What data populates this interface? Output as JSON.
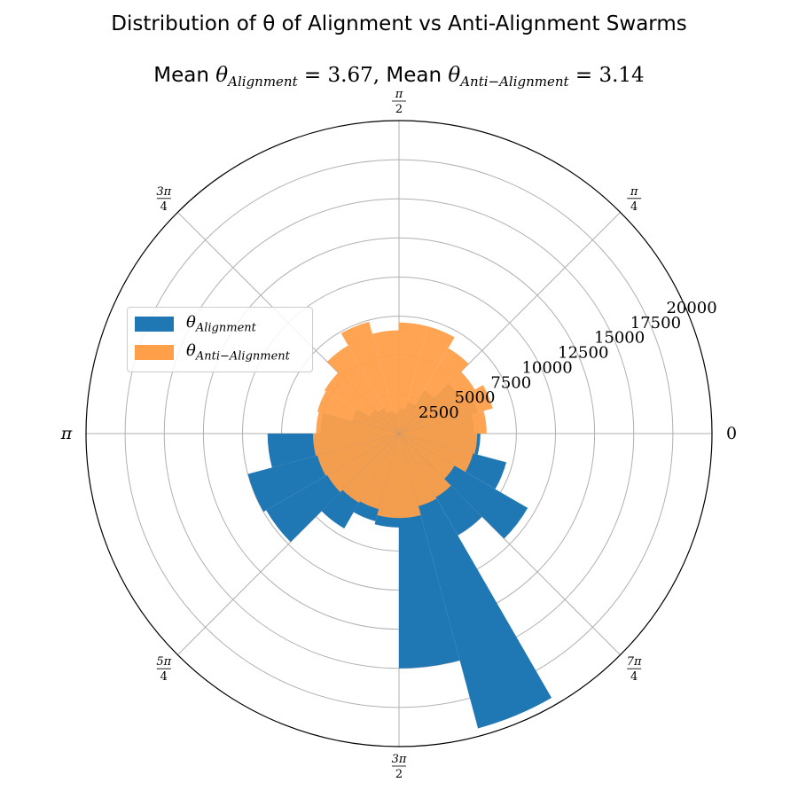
{
  "chart_data": {
    "type": "bar",
    "projection": "polar",
    "title": "Distribution of θ of Alignment vs Anti-Alignment Swarms",
    "subtitle": {
      "prefix_1": "Mean ",
      "symbol_1": "θ",
      "sub_1": "Alignment",
      "value_1": " = 3.67, ",
      "prefix_2": "Mean ",
      "symbol_2": "θ",
      "sub_2": "Anti−Alignment",
      "value_2": " = 3.14"
    },
    "angle_tick_labels": [
      "0",
      "π/4",
      "π/2",
      "3π/4",
      "π",
      "5π/4",
      "3π/2",
      "7π/4"
    ],
    "radial_ticks": [
      2500,
      5000,
      7500,
      10000,
      12500,
      15000,
      17500,
      20000
    ],
    "rlim": [
      0,
      20000
    ],
    "grid": true,
    "legend_position": "left",
    "bin_count": 24,
    "bin_width_deg": 15,
    "series": [
      {
        "name": "θ_Alignment",
        "color": "#1f77b4",
        "values": [
          4800,
          5200,
          4500,
          3200,
          2100,
          1600,
          1300,
          1500,
          1900,
          2200,
          3100,
          5000,
          8400,
          10000,
          9800,
          7000,
          5800,
          6000,
          15000,
          19500,
          7500,
          9500,
          7100,
          5200
        ]
      },
      {
        "name": "θ_Anti−Alignment",
        "color": "#ff9f4a",
        "opacity": 0.95,
        "values": [
          5600,
          6200,
          5600,
          6300,
          7100,
          7100,
          6600,
          7400,
          6500,
          5500,
          5400,
          5300,
          5500,
          5400,
          5300,
          5100,
          5000,
          5400,
          5400,
          4800,
          4700,
          4100,
          4900,
          5000
        ]
      }
    ]
  },
  "legend": {
    "entries": [
      {
        "symbol": "θ",
        "sub": "Alignment",
        "color": "#1f77b4"
      },
      {
        "symbol": "θ",
        "sub": "Anti−Alignment",
        "color": "#ff9f4a"
      }
    ]
  }
}
